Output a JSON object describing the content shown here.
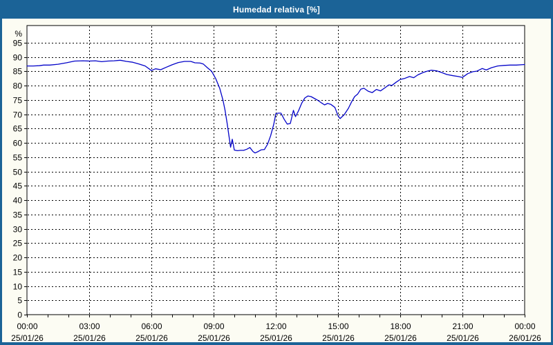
{
  "title": "Humedad relativa [%]",
  "colors": {
    "titlebar_bg": "#1b6397",
    "frame_border": "#1b6397",
    "title_text": "#ffffff",
    "content_bg": "#fcfcf3",
    "plot_bg": "#ffffff",
    "grid": "#000000",
    "axis": "#000000",
    "label_text": "#000000",
    "line": "#0202c8"
  },
  "chart_data": {
    "type": "line",
    "title": "Humedad relativa [%]",
    "ylabel": "%",
    "xlabel": "",
    "ylim": [
      0,
      100
    ],
    "y_tick_min": 0,
    "y_tick_max": 95,
    "y_tick_step": 5,
    "grid": "dashed",
    "legend": "none",
    "x_span_hours": 24,
    "x_minor_tick_step_hours": 1,
    "x_ticks": [
      {
        "hour": 0,
        "time": "00:00",
        "date": "25/01/26"
      },
      {
        "hour": 3,
        "time": "03:00",
        "date": "25/01/26"
      },
      {
        "hour": 6,
        "time": "06:00",
        "date": "25/01/26"
      },
      {
        "hour": 9,
        "time": "09:00",
        "date": "25/01/26"
      },
      {
        "hour": 12,
        "time": "12:00",
        "date": "25/01/26"
      },
      {
        "hour": 15,
        "time": "15:00",
        "date": "25/01/26"
      },
      {
        "hour": 18,
        "time": "18:00",
        "date": "25/01/26"
      },
      {
        "hour": 21,
        "time": "21:00",
        "date": "25/01/26"
      },
      {
        "hour": 24,
        "time": "00:00",
        "date": "26/01/26"
      }
    ],
    "series": [
      {
        "name": "Humedad relativa",
        "unit": "%",
        "points": [
          [
            0,
            86.9
          ],
          [
            0.3,
            86.9
          ],
          [
            0.6,
            87.0
          ],
          [
            0.8,
            87.2
          ],
          [
            1.1,
            87.2
          ],
          [
            1.5,
            87.5
          ],
          [
            1.9,
            88.0
          ],
          [
            2.3,
            88.6
          ],
          [
            2.7,
            88.7
          ],
          [
            3.0,
            88.6
          ],
          [
            3.3,
            88.7
          ],
          [
            3.6,
            88.4
          ],
          [
            3.9,
            88.6
          ],
          [
            4.2,
            88.7
          ],
          [
            4.5,
            88.9
          ],
          [
            4.8,
            88.5
          ],
          [
            5.1,
            88.2
          ],
          [
            5.4,
            87.6
          ],
          [
            5.7,
            86.9
          ],
          [
            6.0,
            85.3
          ],
          [
            6.2,
            85.9
          ],
          [
            6.45,
            85.6
          ],
          [
            6.7,
            86.4
          ],
          [
            7.0,
            87.3
          ],
          [
            7.3,
            88.1
          ],
          [
            7.6,
            88.5
          ],
          [
            7.9,
            88.5
          ],
          [
            8.1,
            88.0
          ],
          [
            8.35,
            87.9
          ],
          [
            8.5,
            87.6
          ],
          [
            8.7,
            86.3
          ],
          [
            8.9,
            85.1
          ],
          [
            9.1,
            82.5
          ],
          [
            9.3,
            79.0
          ],
          [
            9.45,
            75.0
          ],
          [
            9.55,
            71.5
          ],
          [
            9.65,
            67.0
          ],
          [
            9.75,
            62.0
          ],
          [
            9.82,
            58.5
          ],
          [
            9.9,
            61.3
          ],
          [
            10.0,
            57.5
          ],
          [
            10.15,
            57.3
          ],
          [
            10.3,
            57.4
          ],
          [
            10.45,
            57.4
          ],
          [
            10.6,
            57.8
          ],
          [
            10.75,
            58.4
          ],
          [
            10.9,
            57.0
          ],
          [
            11.0,
            56.5
          ],
          [
            11.15,
            57.0
          ],
          [
            11.3,
            57.6
          ],
          [
            11.45,
            57.7
          ],
          [
            11.6,
            59.5
          ],
          [
            11.75,
            62.5
          ],
          [
            11.9,
            66.5
          ],
          [
            12.0,
            70.2
          ],
          [
            12.1,
            70.4
          ],
          [
            12.25,
            70.4
          ],
          [
            12.4,
            68.3
          ],
          [
            12.55,
            66.6
          ],
          [
            12.7,
            66.8
          ],
          [
            12.85,
            71.4
          ],
          [
            12.95,
            69.2
          ],
          [
            13.1,
            71.3
          ],
          [
            13.25,
            73.9
          ],
          [
            13.4,
            75.7
          ],
          [
            13.55,
            76.4
          ],
          [
            13.7,
            76.2
          ],
          [
            13.85,
            75.6
          ],
          [
            14.0,
            75.0
          ],
          [
            14.2,
            74.0
          ],
          [
            14.35,
            73.3
          ],
          [
            14.5,
            73.8
          ],
          [
            14.65,
            73.5
          ],
          [
            14.85,
            72.4
          ],
          [
            15.0,
            69.5
          ],
          [
            15.1,
            68.5
          ],
          [
            15.3,
            69.9
          ],
          [
            15.5,
            72.1
          ],
          [
            15.65,
            74.3
          ],
          [
            15.8,
            76.2
          ],
          [
            15.95,
            77.1
          ],
          [
            16.1,
            78.8
          ],
          [
            16.25,
            79.1
          ],
          [
            16.45,
            78.1
          ],
          [
            16.65,
            77.6
          ],
          [
            16.85,
            78.7
          ],
          [
            17.05,
            78.2
          ],
          [
            17.25,
            79.2
          ],
          [
            17.45,
            80.3
          ],
          [
            17.6,
            80.1
          ],
          [
            17.8,
            81.2
          ],
          [
            18.0,
            82.2
          ],
          [
            18.2,
            82.5
          ],
          [
            18.45,
            83.2
          ],
          [
            18.65,
            82.8
          ],
          [
            18.85,
            83.8
          ],
          [
            19.1,
            84.6
          ],
          [
            19.3,
            85.1
          ],
          [
            19.5,
            85.4
          ],
          [
            19.75,
            85.2
          ],
          [
            20.0,
            84.6
          ],
          [
            20.25,
            83.9
          ],
          [
            20.55,
            83.5
          ],
          [
            20.8,
            83.2
          ],
          [
            21.0,
            82.9
          ],
          [
            21.25,
            84.2
          ],
          [
            21.5,
            84.9
          ],
          [
            21.7,
            85.1
          ],
          [
            21.95,
            86.0
          ],
          [
            22.15,
            85.5
          ],
          [
            22.4,
            86.3
          ],
          [
            22.7,
            86.9
          ],
          [
            23.0,
            87.1
          ],
          [
            23.3,
            87.2
          ],
          [
            23.6,
            87.2
          ],
          [
            24.0,
            87.4
          ]
        ]
      }
    ]
  }
}
